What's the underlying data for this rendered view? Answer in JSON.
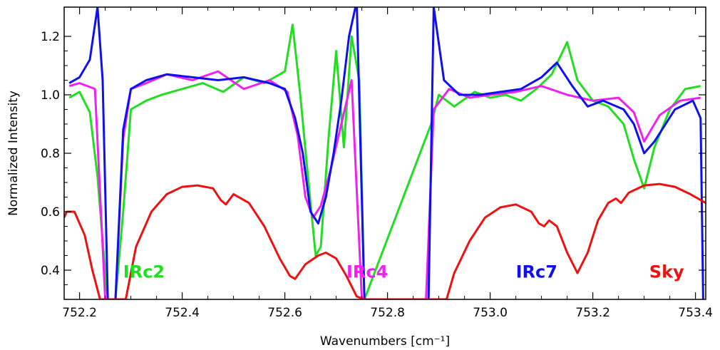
{
  "chart_data": {
    "type": "line",
    "title": "",
    "xlabel": "Wavenumbers [cm⁻¹]",
    "ylabel": "Normalized Intensity",
    "xlim": [
      752.17,
      753.42
    ],
    "ylim": [
      0.3,
      1.3
    ],
    "x_ticks": [
      {
        "value": 752.2,
        "label": "752.2"
      },
      {
        "value": 752.4,
        "label": "752.4"
      },
      {
        "value": 752.6,
        "label": "752.6"
      },
      {
        "value": 752.8,
        "label": "752.8"
      },
      {
        "value": 753.0,
        "label": "753.0"
      },
      {
        "value": 753.2,
        "label": "753.2"
      },
      {
        "value": 753.4,
        "label": "753.4"
      }
    ],
    "y_ticks": [
      {
        "value": 0.4,
        "label": "0.4"
      },
      {
        "value": 0.6,
        "label": "0.6"
      },
      {
        "value": 0.8,
        "label": "0.8"
      },
      {
        "value": 1.0,
        "label": "1.0"
      },
      {
        "value": 1.2,
        "label": "1.2"
      }
    ],
    "grid": false,
    "series": [
      {
        "name": "IRc2",
        "color": "#22dd22",
        "x": [
          752.18,
          752.2,
          752.22,
          752.235,
          752.245,
          752.255,
          752.27,
          752.285,
          752.3,
          752.33,
          752.36,
          752.4,
          752.44,
          752.48,
          752.52,
          752.56,
          752.6,
          752.615,
          752.63,
          752.645,
          752.66,
          752.67,
          752.685,
          752.7,
          752.715,
          752.73,
          752.745,
          752.755,
          752.885,
          752.9,
          752.93,
          752.97,
          753.0,
          753.03,
          753.06,
          753.09,
          753.12,
          753.15,
          753.17,
          753.2,
          753.23,
          753.26,
          753.28,
          753.3,
          753.32,
          753.35,
          753.38,
          753.41
        ],
        "y": [
          0.99,
          1.01,
          0.94,
          0.72,
          0.5,
          0.3,
          0.3,
          0.6,
          0.95,
          0.98,
          1.0,
          1.02,
          1.04,
          1.01,
          1.06,
          1.04,
          1.08,
          1.24,
          1.0,
          0.72,
          0.45,
          0.48,
          0.85,
          1.15,
          0.82,
          1.2,
          1.05,
          0.3,
          0.9,
          1.0,
          0.96,
          1.01,
          0.99,
          1.0,
          0.98,
          1.02,
          1.07,
          1.18,
          1.05,
          0.98,
          0.96,
          0.9,
          0.78,
          0.68,
          0.82,
          0.95,
          1.02,
          1.03
        ]
      },
      {
        "name": "IRc4",
        "color": "#ee22ee",
        "x": [
          752.18,
          752.2,
          752.23,
          752.25,
          752.27,
          752.285,
          752.3,
          752.33,
          752.37,
          752.42,
          752.47,
          752.52,
          752.57,
          752.605,
          752.625,
          752.64,
          752.655,
          752.67,
          752.69,
          752.71,
          752.73,
          752.75,
          752.875,
          752.89,
          752.92,
          752.96,
          753.0,
          753.05,
          753.1,
          753.15,
          753.2,
          753.25,
          753.28,
          753.3,
          753.33,
          753.37,
          753.41
        ],
        "y": [
          1.03,
          1.04,
          1.02,
          0.3,
          0.3,
          0.85,
          1.02,
          1.04,
          1.07,
          1.05,
          1.08,
          1.02,
          1.05,
          1.01,
          0.86,
          0.65,
          0.58,
          0.62,
          0.75,
          0.9,
          1.05,
          0.3,
          0.3,
          0.95,
          1.02,
          0.99,
          1.0,
          1.01,
          1.03,
          1.0,
          0.98,
          0.99,
          0.94,
          0.84,
          0.93,
          0.98,
          0.99
        ]
      },
      {
        "name": "IRc7",
        "color": "#1010ee",
        "x": [
          752.18,
          752.2,
          752.22,
          752.235,
          752.245,
          752.255,
          752.27,
          752.285,
          752.3,
          752.33,
          752.37,
          752.42,
          752.47,
          752.52,
          752.57,
          752.6,
          752.62,
          752.635,
          752.65,
          752.665,
          752.68,
          752.695,
          752.71,
          752.725,
          752.74,
          752.755,
          752.88,
          752.89,
          752.91,
          752.94,
          752.98,
          753.02,
          753.06,
          753.1,
          753.13,
          753.16,
          753.19,
          753.22,
          753.26,
          753.28,
          753.3,
          753.32,
          753.36,
          753.395,
          753.41,
          753.415
        ],
        "y": [
          1.04,
          1.06,
          1.12,
          1.3,
          1.05,
          0.3,
          0.3,
          0.88,
          1.02,
          1.05,
          1.07,
          1.06,
          1.05,
          1.06,
          1.04,
          1.02,
          0.92,
          0.8,
          0.6,
          0.56,
          0.65,
          0.8,
          0.98,
          1.2,
          1.32,
          0.3,
          0.3,
          1.3,
          1.05,
          1.0,
          1.0,
          1.01,
          1.02,
          1.06,
          1.11,
          1.03,
          0.96,
          0.98,
          0.95,
          0.9,
          0.8,
          0.84,
          0.95,
          0.98,
          0.92,
          0.3
        ]
      },
      {
        "name": "Sky",
        "color": "#ee1111",
        "x": [
          752.17,
          752.175,
          752.19,
          752.21,
          752.225,
          752.24,
          752.29,
          752.31,
          752.34,
          752.37,
          752.4,
          752.43,
          752.46,
          752.475,
          752.485,
          752.5,
          752.53,
          752.56,
          752.59,
          752.61,
          752.62,
          752.64,
          752.665,
          752.68,
          752.7,
          752.72,
          752.74,
          752.755,
          752.915,
          752.93,
          752.96,
          752.99,
          753.02,
          753.05,
          753.08,
          753.095,
          753.105,
          753.115,
          753.13,
          753.15,
          753.17,
          753.19,
          753.21,
          753.23,
          753.245,
          753.255,
          753.27,
          753.3,
          753.33,
          753.36,
          753.39,
          753.42
        ],
        "y": [
          0.58,
          0.6,
          0.6,
          0.52,
          0.4,
          0.3,
          0.3,
          0.48,
          0.6,
          0.66,
          0.685,
          0.69,
          0.68,
          0.64,
          0.625,
          0.66,
          0.63,
          0.55,
          0.44,
          0.38,
          0.37,
          0.42,
          0.45,
          0.46,
          0.44,
          0.38,
          0.31,
          0.3,
          0.3,
          0.39,
          0.5,
          0.58,
          0.615,
          0.625,
          0.6,
          0.56,
          0.55,
          0.57,
          0.55,
          0.46,
          0.39,
          0.46,
          0.57,
          0.63,
          0.645,
          0.63,
          0.665,
          0.69,
          0.695,
          0.685,
          0.66,
          0.63
        ]
      }
    ],
    "annotations": [
      {
        "text": "IRc2",
        "color": "#22dd22",
        "x": 752.285
      },
      {
        "text": "IRc4",
        "color": "#ee22ee",
        "x": 752.72
      },
      {
        "text": "IRc7",
        "color": "#1010ee",
        "x": 753.05
      },
      {
        "text": "Sky",
        "color": "#ee1111",
        "x": 753.31
      }
    ],
    "annotation_y": 0.375
  }
}
